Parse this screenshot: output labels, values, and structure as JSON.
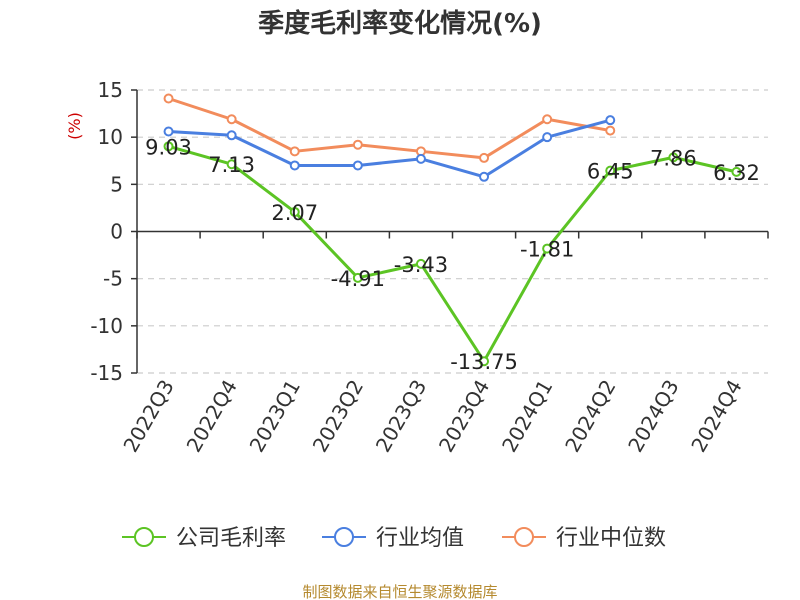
{
  "chart_data": {
    "type": "line",
    "title": "季度毛利率变化情况(%)",
    "ylabel": "(%)",
    "xlabel": "",
    "categories": [
      "2022Q3",
      "2022Q4",
      "2023Q1",
      "2023Q2",
      "2023Q3",
      "2023Q4",
      "2024Q1",
      "2024Q2",
      "2024Q3",
      "2024Q4"
    ],
    "ylim": [
      -15,
      15
    ],
    "yticks": [
      15,
      10,
      5,
      0,
      -5,
      -10,
      -15
    ],
    "ytick_labels": [
      "15",
      "10",
      "5",
      "0",
      "-5",
      "-10",
      "-15"
    ],
    "grid": true,
    "legend_position": "bottom",
    "series": [
      {
        "name": "公司毛利率",
        "color": "#5cc424",
        "values": [
          9.03,
          7.13,
          2.07,
          -4.91,
          -3.43,
          -13.75,
          -1.81,
          6.45,
          7.86,
          6.32
        ],
        "labels": [
          "9.03",
          "7.13",
          "2.07",
          "-4.91",
          "-3.43",
          "-13.75",
          "-1.81",
          "6.45",
          "7.86",
          "6.32"
        ]
      },
      {
        "name": "行业均值",
        "color": "#4a7fe0",
        "values": [
          10.6,
          10.2,
          7.0,
          7.0,
          7.7,
          5.8,
          10.0,
          11.8,
          null,
          null
        ]
      },
      {
        "name": "行业中位数",
        "color": "#f28c5c",
        "values": [
          14.1,
          11.9,
          8.5,
          9.2,
          8.5,
          7.8,
          11.9,
          10.7,
          null,
          null
        ]
      }
    ]
  },
  "footer": {
    "source": "制图数据来自恒生聚源数据库"
  }
}
